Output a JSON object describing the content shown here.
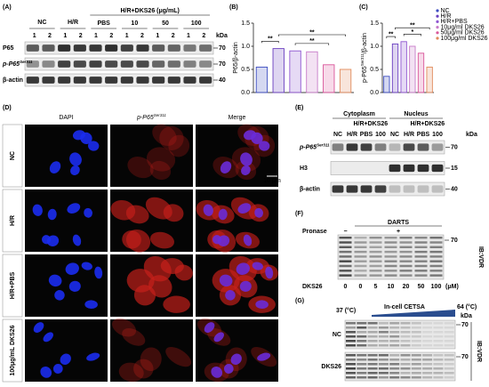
{
  "panels": {
    "A": {
      "label": "(A)",
      "groups": [
        "NC",
        "H/R"
      ],
      "treatment": "H/R+DKS26 (μg/mL)",
      "doses": [
        "PBS",
        "10",
        "50",
        "100"
      ],
      "lanes": [
        "1",
        "2",
        "1",
        "2",
        "1",
        "2",
        "1",
        "2",
        "1",
        "2",
        "1",
        "2"
      ],
      "kda_header": "kDa",
      "rows": [
        {
          "name": "P65",
          "kda": "70"
        },
        {
          "name": "p-P65",
          "sup": "Ser311",
          "kda": "70"
        },
        {
          "name": "β-actin",
          "kda": "40"
        }
      ]
    },
    "D": {
      "label": "(D)",
      "columns": [
        {
          "name": "DAPI"
        },
        {
          "name": "p-P65",
          "sup": "Ser311"
        },
        {
          "name": "Merge"
        }
      ],
      "rows": [
        "NC",
        "H/R",
        "H/R+PBS",
        "100μg/mL DKS26"
      ],
      "scale_bar": "10 μm"
    },
    "E": {
      "label": "(E)",
      "fractions": [
        "Cytoplasm",
        "Nucleus"
      ],
      "treatment": "H/R+DKS26",
      "lanes": [
        "NC",
        "H/R",
        "PBS",
        "100"
      ],
      "kda_header": "kDa",
      "rows": [
        {
          "name": "p-P65",
          "sup": "Ser311",
          "kda": "70"
        },
        {
          "name": "H3",
          "kda": "15"
        },
        {
          "name": "β-actin",
          "kda": "40"
        }
      ]
    },
    "F": {
      "label": "(F)",
      "assay": "DARTS",
      "pronase": "Pronase",
      "minus": "−",
      "plus": "+",
      "marker": "70",
      "antibody": "IB:VDR",
      "compound": "DKS26",
      "doses": [
        "0",
        "0",
        "5",
        "10",
        "20",
        "50",
        "100"
      ],
      "unit": "(μM)"
    },
    "G": {
      "label": "(G)",
      "start": "37 (°C)",
      "assay": "In-cell CETSA",
      "end": "64 (°C)",
      "kda_header": "kDa",
      "rows": [
        {
          "name": "NC",
          "kda": "70"
        },
        {
          "name": "DKS26",
          "kda": "70"
        }
      ],
      "antibody": "IB:VDR"
    }
  },
  "chart_data": [
    {
      "type": "bar",
      "label": "(B)",
      "y_label": [
        "P65/β-actin"
      ],
      "categories": [
        null,
        null,
        null,
        null,
        null,
        null
      ],
      "values": [
        0.55,
        0.95,
        0.9,
        0.88,
        0.6,
        0.5
      ],
      "colors": [
        "#3b4cc0",
        "#6a3fc0",
        "#8e55d0",
        "#c77ac8",
        "#d9559a",
        "#e08a5a"
      ],
      "ylim": [
        0,
        1.5
      ],
      "yticks": [
        {
          "value": 0,
          "label": "0.0"
        },
        {
          "value": 0.5,
          "label": "0.5"
        },
        {
          "value": 1,
          "label": "1.0"
        },
        {
          "value": 1.5,
          "label": "1.5"
        }
      ],
      "annotations": [
        {
          "text": "**",
          "from": 0,
          "to": 1
        },
        {
          "text": "**",
          "from": 2,
          "to": 4
        },
        {
          "text": "**",
          "from": 1,
          "to": 5
        }
      ]
    },
    {
      "type": "bar",
      "label": "(C)",
      "y_label": [
        "p-P65",
        "Ser311",
        "/β-actin"
      ],
      "categories": [
        "NC",
        "H/R",
        "H/R+PBS",
        "10μg/ml DKS26",
        "50μg/ml DKS26",
        "100μg/ml DKS26"
      ],
      "values": [
        0.35,
        1.05,
        1.1,
        1.0,
        0.85,
        0.55
      ],
      "colors": [
        "#3b4cc0",
        "#6a3fc0",
        "#8e55d0",
        "#c77ac8",
        "#d9559a",
        "#e08a5a"
      ],
      "ylim": [
        0,
        1.5
      ],
      "yticks": [
        {
          "value": 0,
          "label": "0.0"
        },
        {
          "value": 0.5,
          "label": "0.5"
        },
        {
          "value": 1,
          "label": "1.0"
        },
        {
          "value": 1.5,
          "label": "1.5"
        }
      ],
      "legend": "upper right",
      "annotations": [
        {
          "text": "**",
          "from": 0,
          "to": 1
        },
        {
          "text": "*",
          "from": 2,
          "to": 4
        },
        {
          "text": "**",
          "from": 1,
          "to": 5
        }
      ]
    }
  ]
}
